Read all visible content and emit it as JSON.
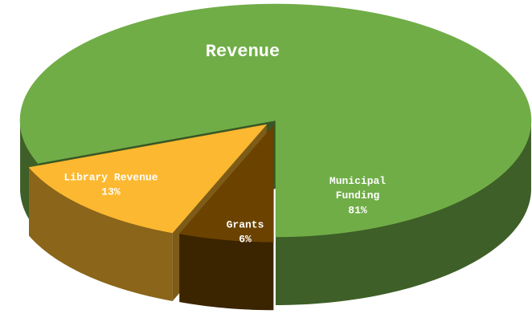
{
  "chart_data": {
    "type": "pie",
    "title": "Revenue",
    "categories": [
      "Municipal Funding",
      "Library Revenue",
      "Grants"
    ],
    "values": [
      81,
      13,
      6
    ],
    "value_labels": [
      "81%",
      "13%",
      "6%"
    ],
    "colors": [
      "#70ad47",
      "#fbb830",
      "#6b4200"
    ]
  }
}
